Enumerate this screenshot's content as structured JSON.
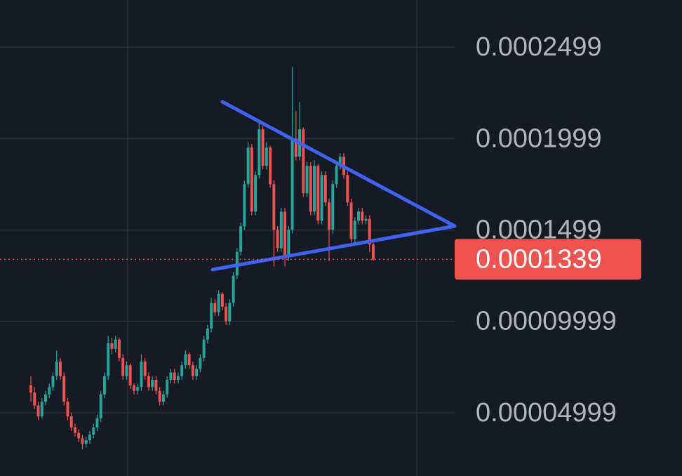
{
  "chart_data": {
    "type": "candlestick",
    "up_color": "#26a69a",
    "down_color": "#ef5350",
    "ylim": [
      1.54e-05,
      0.0002757
    ],
    "yticks": [
      0.0002499,
      0.0001999,
      0.0001499,
      9.999e-05,
      4.999e-05
    ],
    "grid": true,
    "last_price": 0.0001339,
    "ohlc": [
      [
        6.5e-05,
        7e-05,
        5.6e-05,
        6.1e-05
      ],
      [
        6.1e-05,
        6.4e-05,
        5.2e-05,
        5.4e-05
      ],
      [
        5.4e-05,
        5.6e-05,
        4.6e-05,
        4.8e-05
      ],
      [
        4.8e-05,
        5.8e-05,
        4.7e-05,
        5.6e-05
      ],
      [
        5.6e-05,
        6.2e-05,
        5.4e-05,
        6e-05
      ],
      [
        6e-05,
        6.6e-05,
        5.8e-05,
        6.4e-05
      ],
      [
        6.4e-05,
        7.2e-05,
        6.2e-05,
        7e-05
      ],
      [
        7e-05,
        8.4e-05,
        6.8e-05,
        7.8e-05
      ],
      [
        7.8e-05,
        8e-05,
        6.8e-05,
        7e-05
      ],
      [
        7e-05,
        7.2e-05,
        5.4e-05,
        5.6e-05
      ],
      [
        5.6e-05,
        5.8e-05,
        4.6e-05,
        4.8e-05
      ],
      [
        4.8e-05,
        5e-05,
        4e-05,
        4.2e-05
      ],
      [
        4.2e-05,
        4.4e-05,
        3.7e-05,
        3.9e-05
      ],
      [
        3.9e-05,
        4.1e-05,
        3.4e-05,
        3.6e-05
      ],
      [
        3.6e-05,
        3.8e-05,
        3e-05,
        3.3e-05
      ],
      [
        3.3e-05,
        3.7e-05,
        3.1e-05,
        3.5e-05
      ],
      [
        3.5e-05,
        4e-05,
        3.3e-05,
        3.8e-05
      ],
      [
        3.8e-05,
        4.4e-05,
        3.6e-05,
        4.2e-05
      ],
      [
        4.2e-05,
        4.9e-05,
        4e-05,
        4.7e-05
      ],
      [
        4.7e-05,
        6.2e-05,
        4.5e-05,
        6e-05
      ],
      [
        6e-05,
        7.2e-05,
        5.8e-05,
        7e-05
      ],
      [
        7e-05,
        9.2e-05,
        6.8e-05,
        8.8e-05
      ],
      [
        8.8e-05,
        9.1e-05,
        8.2e-05,
        8.5e-05
      ],
      [
        8.5e-05,
        9.2e-05,
        8.3e-05,
        9e-05
      ],
      [
        9e-05,
        9.1e-05,
        7.8e-05,
        8e-05
      ],
      [
        8e-05,
        8.2e-05,
        6.8e-05,
        7e-05
      ],
      [
        7e-05,
        7.8e-05,
        6.8e-05,
        7.6e-05
      ],
      [
        7.6e-05,
        7.7e-05,
        6.3e-05,
        6.5e-05
      ],
      [
        6.5e-05,
        6.6e-05,
        6e-05,
        6.2e-05
      ],
      [
        6.2e-05,
        6.6e-05,
        6e-05,
        6.4e-05
      ],
      [
        6.4e-05,
        8.2e-05,
        6.2e-05,
        7.8e-05
      ],
      [
        7.8e-05,
        8e-05,
        6.8e-05,
        7e-05
      ],
      [
        7e-05,
        7.2e-05,
        6.2e-05,
        6.4e-05
      ],
      [
        6.4e-05,
        7e-05,
        6.2e-05,
        6.8e-05
      ],
      [
        6.8e-05,
        7e-05,
        6e-05,
        6.2e-05
      ],
      [
        6.2e-05,
        6.4e-05,
        5.4e-05,
        5.6e-05
      ],
      [
        5.6e-05,
        6.2e-05,
        5.4e-05,
        6e-05
      ],
      [
        6e-05,
        7e-05,
        5.8e-05,
        6.8e-05
      ],
      [
        6.8e-05,
        7.4e-05,
        6.6e-05,
        7.2e-05
      ],
      [
        7.2e-05,
        7.4e-05,
        6.6e-05,
        6.8e-05
      ],
      [
        6.8e-05,
        7.2e-05,
        6.6e-05,
        7e-05
      ],
      [
        7e-05,
        7.8e-05,
        6.8e-05,
        7.6e-05
      ],
      [
        7.6e-05,
        8.4e-05,
        7.4e-05,
        8.2e-05
      ],
      [
        8.2e-05,
        8.3e-05,
        7.4e-05,
        7.6e-05
      ],
      [
        7.6e-05,
        7.8e-05,
        6.8e-05,
        7e-05
      ],
      [
        7e-05,
        7.6e-05,
        6.8e-05,
        7.4e-05
      ],
      [
        7.4e-05,
        8.2e-05,
        7.2e-05,
        8e-05
      ],
      [
        8e-05,
        9.2e-05,
        7.8e-05,
        9e-05
      ],
      [
        9e-05,
        9.8e-05,
        8.8e-05,
        9.6e-05
      ],
      [
        9.6e-05,
        0.000113,
        9.4e-05,
        0.00011
      ],
      [
        0.00011,
        0.000112,
        0.000103,
        0.000105
      ],
      [
        0.000105,
        0.000117,
        0.000103,
        0.000115
      ],
      [
        0.000115,
        0.000116,
        0.000106,
        0.000108
      ],
      [
        0.000108,
        0.00011,
        9.8e-05,
        0.0001
      ],
      [
        0.0001,
        0.000112,
        9.8e-05,
        0.00011
      ],
      [
        0.00011,
        0.000127,
        0.000108,
        0.000125
      ],
      [
        0.000125,
        0.00014,
        0.000123,
        0.000138
      ],
      [
        0.000138,
        0.000154,
        0.000136,
        0.000152
      ],
      [
        0.000152,
        0.000177,
        0.00015,
        0.000175
      ],
      [
        0.000175,
        0.000198,
        0.000173,
        0.000195
      ],
      [
        0.000195,
        0.000197,
        0.000158,
        0.00016
      ],
      [
        0.00016,
        0.000182,
        0.000158,
        0.00018
      ],
      [
        0.00018,
        0.00021,
        0.000178,
        0.000205
      ],
      [
        0.000205,
        0.000207,
        0.000183,
        0.000185
      ],
      [
        0.000185,
        0.000198,
        0.000183,
        0.000195
      ],
      [
        0.000195,
        0.000196,
        0.000173,
        0.000175
      ],
      [
        0.000175,
        0.000177,
        0.00013,
        0.00015
      ],
      [
        0.00015,
        0.000152,
        0.000138,
        0.00014
      ],
      [
        0.00014,
        0.000162,
        0.000138,
        0.00016
      ],
      [
        0.00016,
        0.000162,
        0.00013,
        0.000135
      ],
      [
        0.000135,
        0.000152,
        0.000133,
        0.00015
      ],
      [
        0.00015,
        0.000239,
        0.000148,
        0.0002
      ],
      [
        0.0002,
        0.000215,
        0.000188,
        0.00019
      ],
      [
        0.00019,
        0.00022,
        0.000188,
        0.000205
      ],
      [
        0.000205,
        0.000206,
        0.000168,
        0.00017
      ],
      [
        0.00017,
        0.000187,
        0.000168,
        0.000185
      ],
      [
        0.000185,
        0.000187,
        0.000158,
        0.00016
      ],
      [
        0.00016,
        0.000188,
        0.000158,
        0.000185
      ],
      [
        0.000185,
        0.000186,
        0.000153,
        0.000155
      ],
      [
        0.000155,
        0.000182,
        0.000153,
        0.00018
      ],
      [
        0.00018,
        0.000182,
        0.000163,
        0.000165
      ],
      [
        0.000165,
        0.000167,
        0.000133,
        0.00015
      ],
      [
        0.00015,
        0.000177,
        0.000148,
        0.000175
      ],
      [
        0.000175,
        0.000187,
        0.000173,
        0.000185
      ],
      [
        0.000185,
        0.000192,
        0.000183,
        0.00019
      ],
      [
        0.00019,
        0.000192,
        0.000178,
        0.00018
      ],
      [
        0.00018,
        0.000182,
        0.000163,
        0.000165
      ],
      [
        0.000165,
        0.000167,
        0.000143,
        0.000145
      ],
      [
        0.000145,
        0.000157,
        0.000143,
        0.000155
      ],
      [
        0.000155,
        0.000162,
        0.000153,
        0.00016
      ],
      [
        0.00016,
        0.000162,
        0.000153,
        0.000155
      ],
      [
        0.000155,
        0.000158,
        0.000153,
        0.000156
      ],
      [
        0.000156,
        0.000158,
        0.000138,
        0.000142
      ],
      [
        0.000142,
        0.000143,
        0.000133,
        0.0001339
      ]
    ]
  }
}
